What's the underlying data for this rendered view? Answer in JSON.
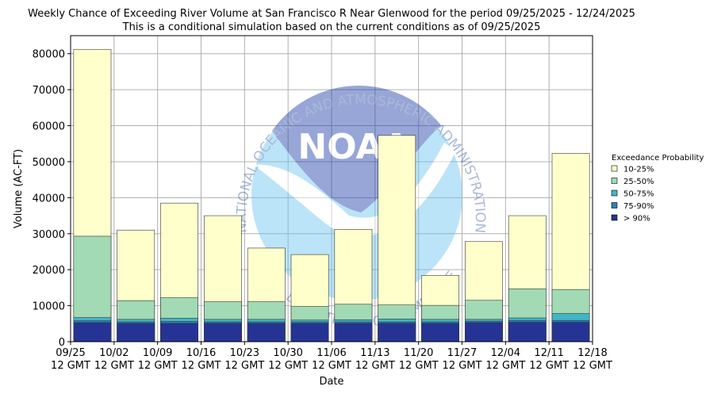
{
  "chart_data": {
    "type": "bar",
    "title": "Weekly Chance of Exceeding River Volume at San Francisco R Near Glenwood for the period 09/25/2025 - 12/24/2025",
    "subtitle": "This is a conditional simulation based on the current conditions as of 09/25/2025",
    "xlabel": "Date",
    "ylabel": "Volume (AC-FT)",
    "ylim": [
      0,
      85000
    ],
    "yticks": [
      0,
      10000,
      20000,
      30000,
      40000,
      50000,
      60000,
      70000,
      80000
    ],
    "xtick_labels": [
      [
        "09/25",
        "12 GMT"
      ],
      [
        "10/02",
        "12 GMT"
      ],
      [
        "10/09",
        "12 GMT"
      ],
      [
        "10/16",
        "12 GMT"
      ],
      [
        "10/23",
        "12 GMT"
      ],
      [
        "10/30",
        "12 GMT"
      ],
      [
        "11/06",
        "12 GMT"
      ],
      [
        "11/13",
        "12 GMT"
      ],
      [
        "11/20",
        "12 GMT"
      ],
      [
        "11/27",
        "12 GMT"
      ],
      [
        "12/04",
        "12 GMT"
      ],
      [
        "12/11",
        "12 GMT"
      ],
      [
        "12/18",
        "12 GMT"
      ]
    ],
    "grid": true,
    "legend": {
      "title": "Exceedance Probability",
      "placement": "right",
      "entries": [
        "10-25%",
        "25-50%",
        "50-75%",
        "75-90%",
        "> 90%"
      ]
    },
    "series": [
      {
        "name": "10-25%",
        "color": "#ffffcc",
        "values": [
          81200,
          31000,
          38500,
          35000,
          26000,
          24200,
          31200,
          57300,
          18400,
          27800,
          35000,
          52300
        ]
      },
      {
        "name": "25-50%",
        "color": "#a1dab4",
        "values": [
          29300,
          11400,
          12200,
          11100,
          11100,
          9800,
          10400,
          10200,
          10100,
          11500,
          14700,
          14500
        ]
      },
      {
        "name": "50-75%",
        "color": "#41b6c4",
        "values": [
          6700,
          6200,
          6500,
          6200,
          6200,
          6000,
          6100,
          6300,
          6200,
          6200,
          6600,
          7800
        ]
      },
      {
        "name": "75-90%",
        "color": "#2c7fb8",
        "values": [
          5800,
          5500,
          5600,
          5500,
          5500,
          5500,
          5500,
          5500,
          5500,
          5700,
          5900,
          5900
        ]
      },
      {
        "name": "> 90%",
        "color": "#253494",
        "values": [
          5300,
          5100,
          5100,
          5100,
          5100,
          5100,
          5100,
          5100,
          5100,
          5300,
          5400,
          5400
        ]
      }
    ],
    "watermark": {
      "text_top": "NATIONAL OCEANIC AND ATMOSPHERIC ADMINISTRATION",
      "text_bottom": "U.S. DEPARTMENT OF COMMERCE",
      "logo_text": "NOAA"
    }
  }
}
